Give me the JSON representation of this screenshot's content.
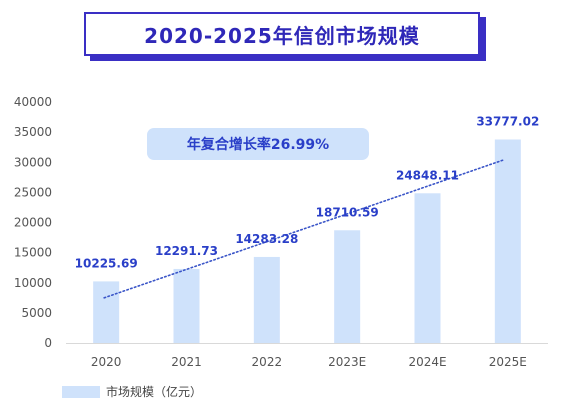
{
  "chart_data": {
    "type": "bar",
    "title": "2020-2025年信创市场规模",
    "categories": [
      "2020",
      "2021",
      "2022",
      "2023E",
      "2024E",
      "2025E"
    ],
    "series": [
      {
        "name": "市场规模（亿元）",
        "values": [
          10225.69,
          12291.73,
          14283.28,
          18710.59,
          24848.11,
          33777.02
        ]
      }
    ],
    "data_labels": [
      "10225.69",
      "12291.73",
      "14283.28",
      "18710.59",
      "24848.11",
      "33777.02"
    ],
    "ylim": [
      0,
      40000
    ],
    "yticks": [
      "0",
      "5000",
      "10000",
      "15000",
      "20000",
      "25000",
      "30000",
      "35000",
      "40000"
    ],
    "trendline": {
      "style": "dotted",
      "from": 7500,
      "to": 30400
    },
    "annotation": "年复合增长率26.99%",
    "legend_position": "bottom-left",
    "grid": false,
    "colors": {
      "bar": "#cfe2fb",
      "label": "#2a3fc8",
      "trend": "#3a55c8",
      "annotation_bg": "#cfe2fb",
      "title": "#2f28b8"
    }
  }
}
